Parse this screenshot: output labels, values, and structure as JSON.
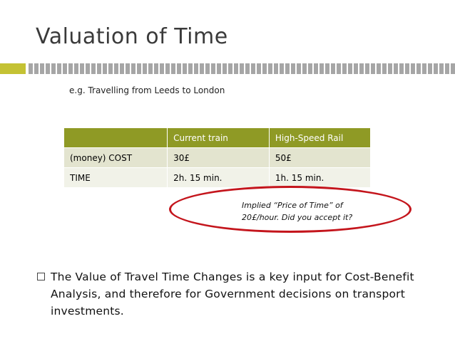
{
  "slide": {
    "title": "Valuation of Time",
    "subtitle": "e.g. Travelling from Leeds to London",
    "table": {
      "headers": [
        "",
        "Current train",
        "High-Speed Rail"
      ],
      "rows": [
        [
          "(money) COST",
          "30£",
          "50£"
        ],
        [
          "TIME",
          "2h. 15 min.",
          "1h. 15 min."
        ]
      ]
    },
    "callout": {
      "line1": "Implied “Price of Time” of",
      "line2": "20£/hour. Did you accept it?"
    },
    "bullet": "The Value of Travel Time Changes is a key input for Cost-Benefit Analysis, and therefore for Government decisions on transport investments."
  },
  "colors": {
    "accent": "#8f9a25",
    "stripe_green": "#c4c234",
    "ellipse_red": "#c4151c"
  },
  "icons": {
    "bullet": "square-bullet-icon"
  }
}
